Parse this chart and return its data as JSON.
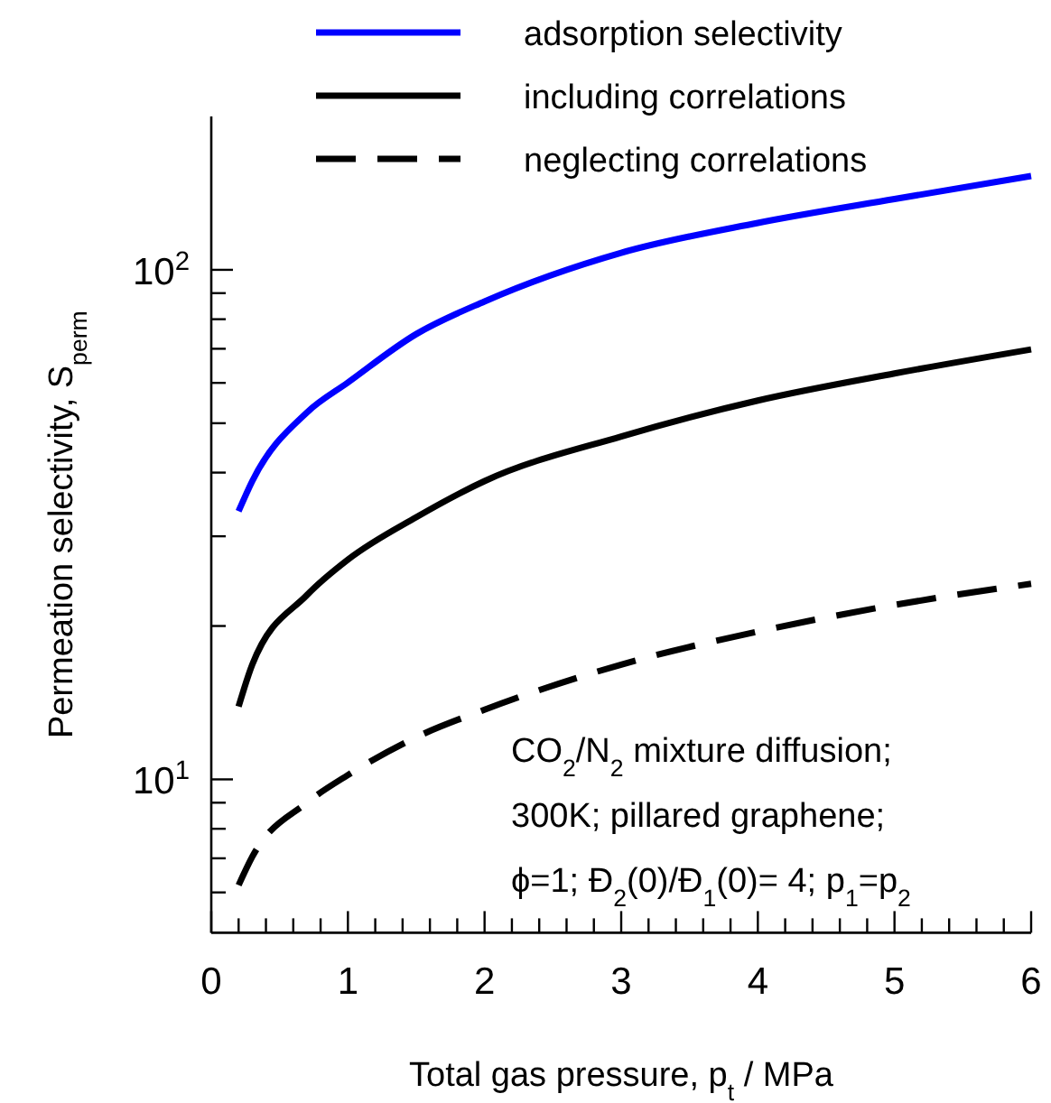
{
  "chart_data": {
    "type": "line",
    "xlabel": "Total gas pressure, p$_{t}$ / MPa",
    "ylabel": "Permeation selectivity, S$_{perm}$",
    "log": "y",
    "xlim": [
      0,
      6
    ],
    "ylim": [
      5,
      200
    ],
    "xticks": [
      0,
      {
        "value": 0.2,
        "label": null
      },
      {
        "value": 0.4,
        "label": null
      },
      {
        "value": 0.6,
        "label": null
      },
      {
        "value": 0.8,
        "label": null
      },
      1,
      {
        "value": 1.2,
        "label": null
      },
      {
        "value": 1.4,
        "label": null
      },
      {
        "value": 1.6,
        "label": null
      },
      {
        "value": 1.8,
        "label": null
      },
      2,
      {
        "value": 2.2,
        "label": null
      },
      {
        "value": 2.4,
        "label": null
      },
      {
        "value": 2.6,
        "label": null
      },
      {
        "value": 2.8,
        "label": null
      },
      3,
      {
        "value": 3.2,
        "label": null
      },
      {
        "value": 3.4,
        "label": null
      },
      {
        "value": 3.6,
        "label": null
      },
      {
        "value": 3.8,
        "label": null
      },
      4,
      {
        "value": 4.2,
        "label": null
      },
      {
        "value": 4.4,
        "label": null
      },
      {
        "value": 4.6,
        "label": null
      },
      {
        "value": 4.8,
        "label": null
      },
      5,
      {
        "value": 5.2,
        "label": null
      },
      {
        "value": 5.4,
        "label": null
      },
      {
        "value": 5.6,
        "label": null
      },
      {
        "value": 5.8,
        "label": null
      },
      6
    ],
    "yticks": [
      {
        "value": 6,
        "label": null
      },
      {
        "value": 7,
        "label": null
      },
      {
        "value": 8,
        "label": null
      },
      {
        "value": 9,
        "label": null
      },
      {
        "value": 10,
        "label": "10$^{1}$"
      },
      {
        "value": 20,
        "label": null
      },
      {
        "value": 30,
        "label": null
      },
      {
        "value": 40,
        "label": null
      },
      {
        "value": 50,
        "label": null
      },
      {
        "value": 60,
        "label": null
      },
      {
        "value": 70,
        "label": null
      },
      {
        "value": 80,
        "label": null
      },
      {
        "value": 90,
        "label": null
      },
      {
        "value": 100,
        "label": "10$^{2}$"
      }
    ],
    "x": [
      0.2,
      0.3,
      0.7,
      1,
      1.5,
      2,
      3,
      4,
      5,
      6
    ],
    "series": [
      {
        "name": "adsorption selectivity",
        "color": "#0000ff",
        "line_style": "solid",
        "values": [
          33.6,
          38.5,
          52.5,
          60.1,
          74.8,
          86.7,
          108,
          123.6,
          137.7,
          152.8
        ]
      },
      {
        "name": "including correlations",
        "color": "#000000",
        "line_style": "solid",
        "values": [
          13.9,
          16.8,
          23.0,
          27.0,
          32.7,
          38.5,
          47.1,
          55.4,
          62.6,
          69.8
        ]
      },
      {
        "name": "neglecting correlations",
        "color": "#000000",
        "line_style": "dashed",
        "values": [
          6.2,
          7.05,
          9.0,
          10.2,
          12.1,
          13.7,
          16.8,
          19.5,
          22.0,
          24.2
        ]
      }
    ],
    "legend": "top",
    "annotations": [
      "CO$_{2}$/N$_{2}$ mixture diffusion;",
      "300K;  pillared graphene;",
      "ϕ=1; Đ$_{2}$(0)/Đ$_{1}$(0)= 4; p$_{1}$=p$_{2}$"
    ]
  }
}
